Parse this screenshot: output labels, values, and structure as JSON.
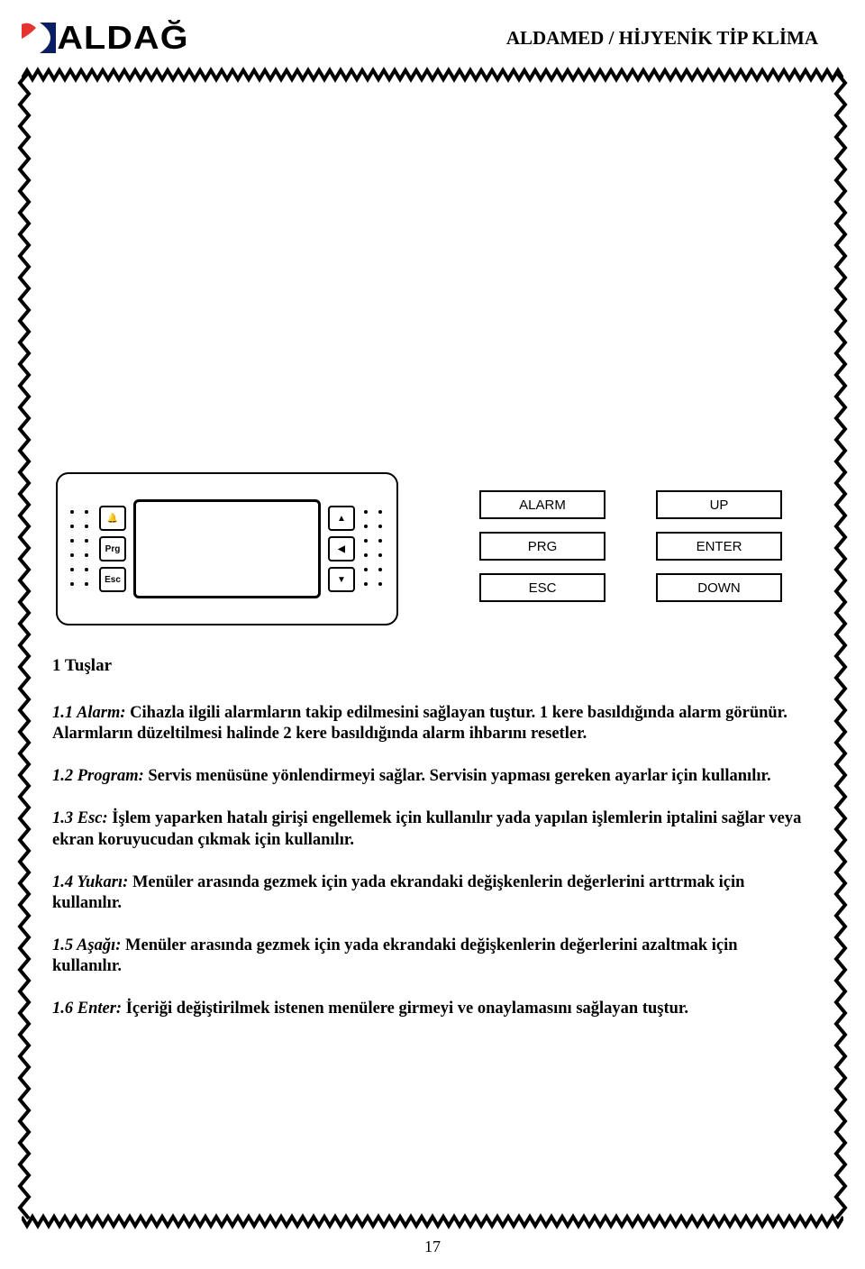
{
  "header": {
    "brand": "ALDAĞ",
    "doc_title": "ALDAMED / HİJYENİK TİP KLİMA",
    "logo_colors": {
      "red": "#e5342f",
      "navy": "#0b1f63"
    }
  },
  "device": {
    "left_key_labels": [
      "🔔",
      "Prg",
      "Esc"
    ],
    "right_key_symbols": [
      "▲",
      "◀",
      "▼"
    ]
  },
  "key_grid": {
    "row1": {
      "left": "ALARM",
      "right": "UP"
    },
    "row2": {
      "left": "PRG",
      "right": "ENTER"
    },
    "row3": {
      "left": "ESC",
      "right": "DOWN"
    }
  },
  "section": {
    "title": "1 Tuşlar",
    "items": [
      {
        "tag": "1.1 Alarm:",
        "text": "Cihazla ilgili alarmların takip edilmesini sağlayan tuştur. 1 kere basıldığında alarm görünür. Alarmların düzeltilmesi halinde 2 kere basıldığında alarm ihbarını resetler."
      },
      {
        "tag": "1.2 Program:",
        "text": "Servis menüsüne yönlendirmeyi sağlar. Servisin yapması gereken ayarlar için kullanılır."
      },
      {
        "tag": "1.3 Esc:",
        "text": "İşlem yaparken hatalı girişi engellemek için kullanılır yada yapılan işlemlerin iptalini sağlar veya ekran koruyucudan çıkmak için kullanılır."
      },
      {
        "tag": "1.4 Yukarı:",
        "text": "Menüler arasında gezmek için yada ekrandaki değişkenlerin değerlerini arttrmak için kullanılır."
      },
      {
        "tag": "1.5 Aşağı:",
        "text": "Menüler arasında gezmek için yada ekrandaki değişkenlerin değerlerini azaltmak için kullanılır."
      },
      {
        "tag": "1.6 Enter:",
        "text": "İçeriği değiştirilmek istenen menülere girmeyi ve onaylamasını sağlayan tuştur."
      }
    ]
  },
  "page_number": "17",
  "styling": {
    "page_bg": "#ffffff",
    "text_color": "#000000",
    "frame_stroke": "#000000",
    "title_fontsize_pt": 14,
    "body_fontsize_pt": 14
  }
}
